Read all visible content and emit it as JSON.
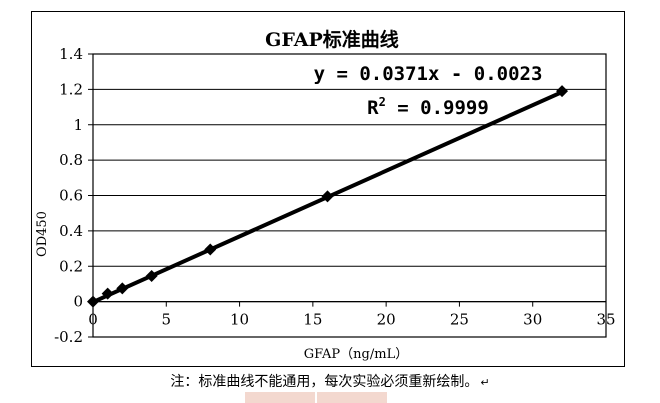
{
  "chart_data": {
    "type": "scatter",
    "title": "GFAP标准曲线",
    "xlabel": "GFAP（ng/mL）",
    "ylabel": "OD450",
    "xlim": [
      0,
      35
    ],
    "ylim": [
      -0.2,
      1.4
    ],
    "xticks": [
      "0",
      "5",
      "10",
      "15",
      "20",
      "25",
      "30",
      "35"
    ],
    "yticks": [
      "-0.2",
      "0",
      "0.2",
      "0.4",
      "0.6",
      "0.8",
      "1",
      "1.2",
      "1.4"
    ],
    "grid": "horizontal",
    "x": [
      0,
      1,
      2,
      4,
      8,
      16,
      32
    ],
    "y": [
      0,
      0.045,
      0.075,
      0.145,
      0.295,
      0.595,
      1.19
    ],
    "trendline": {
      "slope": 0.0371,
      "intercept": -0.0023
    },
    "equation": "y = 0.0371x - 0.0023",
    "r2_label": "R",
    "r2_sup": "2",
    "r2_value": " = 0.9999"
  },
  "note": "注：标准曲线不能通用，每次实验必须重新绘制。",
  "note_mark": "↵",
  "colors": {
    "line": "#000000",
    "marker": "#000000",
    "grid": "#000000",
    "watermark": "#f3d8cf"
  }
}
